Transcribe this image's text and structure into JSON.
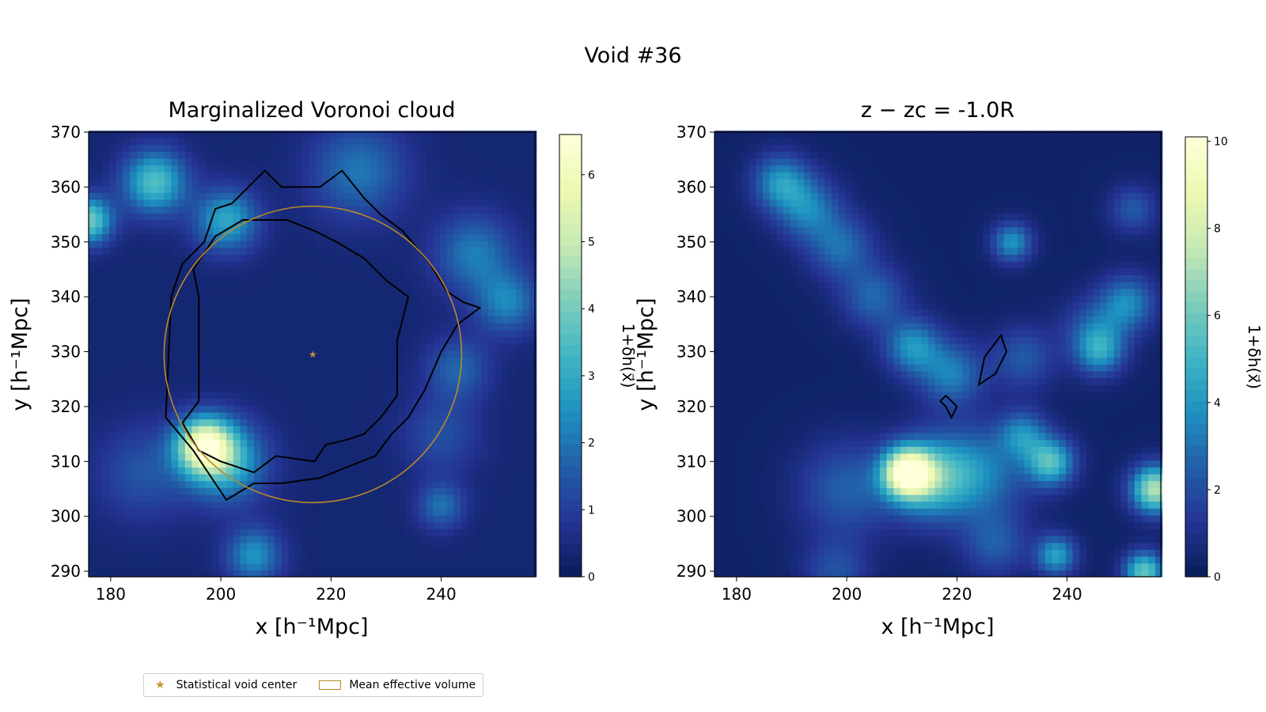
{
  "suptitle": "Void #36",
  "legend": {
    "star_label": "Statistical void center",
    "volume_label": "Mean effective volume"
  },
  "colormap": [
    "#081d58",
    "#253494",
    "#225ea8",
    "#1d91c0",
    "#41b6c4",
    "#7fcdbb",
    "#c7e9b4",
    "#edf8b1",
    "#ffffd9"
  ],
  "colors": {
    "void_center": "#c8903a",
    "mean_volume": "#b8892a",
    "contour": "#000000"
  },
  "chart_data": [
    {
      "type": "heatmap",
      "title": "Marginalized Voronoi cloud",
      "xlabel": "x [h⁻¹Mpc]",
      "ylabel": "y [h⁻¹Mpc]",
      "xlim": [
        176,
        257
      ],
      "ylim": [
        289,
        370
      ],
      "xticks": [
        180,
        200,
        220,
        240
      ],
      "yticks": [
        290,
        300,
        310,
        320,
        330,
        340,
        350,
        360,
        370
      ],
      "colorbar": {
        "label": "1+δh(x⃗)",
        "min": 0,
        "max": 6.6,
        "ticks": [
          0,
          1,
          2,
          3,
          4,
          5,
          6
        ]
      },
      "void_center": [
        216.7,
        329.5
      ],
      "mean_effective_radius": 27,
      "density_features": [
        {
          "x": 197,
          "y": 313,
          "peak": 5.2,
          "sigma": 3.5
        },
        {
          "x": 201,
          "y": 310,
          "peak": 2.8,
          "sigma": 5
        },
        {
          "x": 188,
          "y": 361,
          "peak": 3.2,
          "sigma": 4
        },
        {
          "x": 201,
          "y": 354,
          "peak": 2.6,
          "sigma": 4
        },
        {
          "x": 176,
          "y": 354,
          "peak": 3.6,
          "sigma": 3
        },
        {
          "x": 225,
          "y": 363,
          "peak": 1.7,
          "sigma": 6
        },
        {
          "x": 246,
          "y": 348,
          "peak": 1.8,
          "sigma": 5
        },
        {
          "x": 252,
          "y": 339,
          "peak": 1.9,
          "sigma": 4
        },
        {
          "x": 206,
          "y": 293,
          "peak": 2.2,
          "sigma": 3.5
        },
        {
          "x": 240,
          "y": 302,
          "peak": 1.6,
          "sigma": 3
        },
        {
          "x": 243,
          "y": 327,
          "peak": 1.4,
          "sigma": 4
        },
        {
          "x": 186,
          "y": 308,
          "peak": 1.1,
          "sigma": 6
        },
        {
          "x": 240,
          "y": 315,
          "peak": 1.0,
          "sigma": 5
        }
      ],
      "contours": [
        [
          [
            190,
            318
          ],
          [
            191,
            340
          ],
          [
            193,
            346
          ],
          [
            197,
            350
          ],
          [
            199,
            356
          ],
          [
            202,
            357
          ],
          [
            205,
            360
          ],
          [
            208,
            363
          ],
          [
            211,
            360
          ],
          [
            214,
            360
          ],
          [
            218,
            360
          ],
          [
            222,
            363
          ],
          [
            226,
            358
          ],
          [
            229,
            355
          ],
          [
            233,
            352
          ],
          [
            238,
            346
          ],
          [
            241,
            341
          ],
          [
            244,
            339
          ],
          [
            247,
            338
          ],
          [
            243,
            335
          ],
          [
            240,
            330
          ],
          [
            237,
            323
          ],
          [
            234,
            318
          ],
          [
            231,
            315
          ],
          [
            228,
            311
          ],
          [
            223,
            309
          ],
          [
            218,
            307
          ],
          [
            211,
            306
          ],
          [
            206,
            306
          ],
          [
            201,
            303
          ],
          [
            195,
            312
          ],
          [
            190,
            318
          ]
        ],
        [
          [
            193,
            317
          ],
          [
            196,
            321
          ],
          [
            196,
            325
          ],
          [
            196,
            331
          ],
          [
            196,
            335
          ],
          [
            196,
            340
          ],
          [
            195,
            345
          ],
          [
            199,
            351
          ],
          [
            204,
            354
          ],
          [
            208,
            354
          ],
          [
            212,
            354
          ],
          [
            217,
            352
          ],
          [
            221,
            350
          ],
          [
            226,
            347
          ],
          [
            230,
            343
          ],
          [
            234,
            340
          ],
          [
            232,
            332
          ],
          [
            232,
            328
          ],
          [
            232,
            322
          ],
          [
            229,
            318
          ],
          [
            226,
            315
          ],
          [
            223,
            314
          ],
          [
            219,
            313
          ],
          [
            217,
            310
          ],
          [
            210,
            311
          ],
          [
            206,
            308
          ],
          [
            200,
            310
          ],
          [
            196,
            312
          ],
          [
            193,
            317
          ]
        ]
      ]
    },
    {
      "type": "heatmap",
      "title": "z − zc = -1.0R",
      "xlabel": "x [h⁻¹Mpc]",
      "ylabel": "y [h⁻¹Mpc]",
      "xlim": [
        176,
        257
      ],
      "ylim": [
        289,
        370
      ],
      "xticks": [
        180,
        200,
        220,
        240
      ],
      "yticks": [
        290,
        300,
        310,
        320,
        330,
        340,
        350,
        360,
        370
      ],
      "colorbar": {
        "label": "1+δh(x⃗)",
        "min": 0,
        "max": 10.1,
        "ticks": [
          0,
          2,
          4,
          6,
          8,
          10
        ]
      },
      "density_features": [
        {
          "x": 211,
          "y": 308,
          "peak": 9.0,
          "sigma": 3
        },
        {
          "x": 215,
          "y": 307,
          "peak": 4.5,
          "sigma": 5
        },
        {
          "x": 224,
          "y": 308,
          "peak": 3.0,
          "sigma": 6
        },
        {
          "x": 200,
          "y": 305,
          "peak": 2.2,
          "sigma": 6
        },
        {
          "x": 237,
          "y": 310,
          "peak": 5.0,
          "sigma": 3
        },
        {
          "x": 232,
          "y": 315,
          "peak": 3.0,
          "sigma": 3
        },
        {
          "x": 256,
          "y": 305,
          "peak": 7.0,
          "sigma": 3
        },
        {
          "x": 254,
          "y": 290,
          "peak": 5.5,
          "sigma": 2.5
        },
        {
          "x": 238,
          "y": 293,
          "peak": 4.0,
          "sigma": 2.5
        },
        {
          "x": 188,
          "y": 361,
          "peak": 3.5,
          "sigma": 3.5
        },
        {
          "x": 193,
          "y": 356,
          "peak": 3.0,
          "sigma": 4
        },
        {
          "x": 199,
          "y": 349,
          "peak": 2.5,
          "sigma": 4
        },
        {
          "x": 205,
          "y": 340,
          "peak": 2.4,
          "sigma": 4
        },
        {
          "x": 212,
          "y": 331,
          "peak": 3.5,
          "sigma": 3.5
        },
        {
          "x": 219,
          "y": 326,
          "peak": 3.0,
          "sigma": 4
        },
        {
          "x": 232,
          "y": 329,
          "peak": 2.0,
          "sigma": 4
        },
        {
          "x": 245,
          "y": 334,
          "peak": 2.2,
          "sigma": 4
        },
        {
          "x": 251,
          "y": 339,
          "peak": 3.2,
          "sigma": 3.5
        },
        {
          "x": 246,
          "y": 330,
          "peak": 3.2,
          "sigma": 3
        },
        {
          "x": 230,
          "y": 350,
          "peak": 3.6,
          "sigma": 2.5
        },
        {
          "x": 252,
          "y": 356,
          "peak": 2.0,
          "sigma": 3
        },
        {
          "x": 227,
          "y": 295,
          "peak": 2.0,
          "sigma": 4
        },
        {
          "x": 198,
          "y": 290,
          "peak": 1.8,
          "sigma": 4
        }
      ],
      "contours": [
        [
          [
            225,
            329
          ],
          [
            228,
            333
          ],
          [
            229,
            330
          ],
          [
            227,
            326
          ],
          [
            224,
            324
          ],
          [
            225,
            329
          ]
        ],
        [
          [
            218,
            322
          ],
          [
            219,
            321
          ],
          [
            220,
            320
          ],
          [
            219,
            318
          ],
          [
            218,
            320
          ],
          [
            217,
            321
          ],
          [
            218,
            322
          ]
        ]
      ]
    }
  ]
}
